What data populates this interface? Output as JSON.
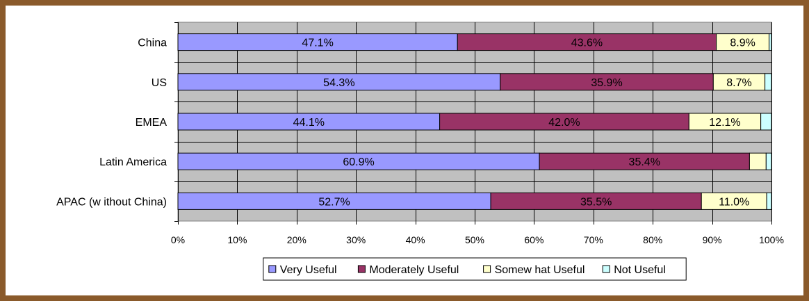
{
  "chart_data": {
    "type": "bar",
    "orientation": "horizontal",
    "stacked": true,
    "percent_stacked": true,
    "categories": [
      "China",
      "US",
      "EMEA",
      "Latin America",
      "APAC (w ithout China)"
    ],
    "series": [
      {
        "name": "Very Useful",
        "color": "#9999ff",
        "values": [
          47.1,
          54.3,
          44.1,
          60.9,
          52.7
        ],
        "labels": [
          "47.1%",
          "54.3%",
          "44.1%",
          "60.9%",
          "52.7%"
        ]
      },
      {
        "name": "Moderately Useful",
        "color": "#993366",
        "values": [
          43.6,
          35.9,
          42.0,
          35.4,
          35.5
        ],
        "labels": [
          "43.6%",
          "35.9%",
          "42.0%",
          "35.4%",
          "35.5%"
        ]
      },
      {
        "name": "Somew hat Useful",
        "color": "#ffffcc",
        "values": [
          8.9,
          8.7,
          12.1,
          2.8,
          11.0
        ],
        "labels": [
          "8.9%",
          "8.7%",
          "12.1%",
          "",
          "11.0%"
        ]
      },
      {
        "name": "Not Useful",
        "color": "#ccffff",
        "values": [
          0.4,
          1.1,
          1.8,
          0.9,
          0.8
        ],
        "labels": [
          "",
          "",
          "",
          "",
          ""
        ]
      }
    ],
    "x_ticks": [
      "0%",
      "10%",
      "20%",
      "30%",
      "40%",
      "50%",
      "60%",
      "70%",
      "80%",
      "90%",
      "100%"
    ],
    "xlim": [
      0,
      100
    ],
    "grid": true,
    "plot_background": "#c0c0c0",
    "legend_position": "bottom"
  }
}
